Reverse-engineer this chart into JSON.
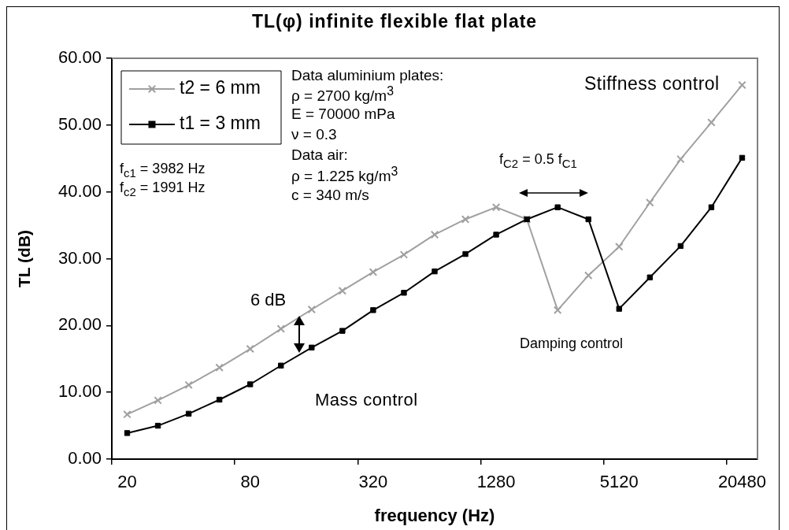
{
  "chart_data": {
    "type": "line",
    "title": "TL(φ) infinite flexible flat plate",
    "xlabel": "frequency (Hz)",
    "ylabel": "TL (dB)",
    "categories": [
      "20",
      null,
      null,
      null,
      "80",
      null,
      null,
      null,
      "320",
      null,
      null,
      null,
      "1280",
      null,
      null,
      null,
      "5120",
      null,
      null,
      null,
      "20480"
    ],
    "series": [
      {
        "name": "t2 = 6 mm",
        "color": "#a0a0a0",
        "marker": "cross",
        "values": [
          6.7,
          8.8,
          11.1,
          13.7,
          16.5,
          19.5,
          22.4,
          25.2,
          28.0,
          30.6,
          33.6,
          35.9,
          37.7,
          35.9,
          22.3,
          27.5,
          31.8,
          38.4,
          44.9,
          50.4,
          56.0
        ]
      },
      {
        "name": "t1 = 3 mm",
        "color": "#000000",
        "marker": "square",
        "values": [
          3.9,
          5.0,
          6.8,
          8.9,
          11.2,
          14.0,
          16.7,
          19.2,
          22.3,
          24.9,
          28.1,
          30.7,
          33.6,
          35.9,
          37.7,
          35.9,
          22.5,
          27.2,
          31.9,
          37.7,
          45.1
        ]
      }
    ],
    "ylim": [
      0,
      60
    ],
    "yticks": [
      {
        "value": 0,
        "label": "0.00"
      },
      {
        "value": 10,
        "label": "10.00"
      },
      {
        "value": 20,
        "label": "20.00"
      },
      {
        "value": 30,
        "label": "30.00"
      },
      {
        "value": 40,
        "label": "40.00"
      },
      {
        "value": 50,
        "label": "50.00"
      },
      {
        "value": 60,
        "label": "60.00"
      }
    ],
    "grid": false,
    "legend": "top left",
    "annotations": [
      "Data aluminium plates:",
      "ρ = 2700 kg/m$^{3}$",
      "E = 70000 mPa",
      "ν = 0.3",
      "Data air:",
      "ρ = 1.225 kg/m$^{3}$",
      "c = 340 m/s",
      "f$_{c1}$ = 3982 Hz",
      "f$_{c2}$ = 1991 Hz",
      "f$_{C2}$ = 0.5 f$_{C1}$",
      "6 dB",
      "Mass control",
      "Damping control",
      "Stiffness control"
    ]
  }
}
